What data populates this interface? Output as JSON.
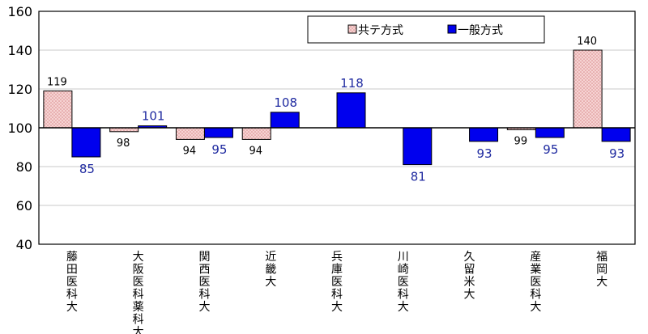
{
  "chart_data": {
    "type": "bar",
    "categories": [
      "藤田医科大",
      "大阪医科薬科大",
      "関西医科大",
      "近畿大",
      "兵庫医科大",
      "川崎医科大",
      "久留米大",
      "産業医科大",
      "福岡大"
    ],
    "series": [
      {
        "name": "共テ方式",
        "values": [
          119,
          98,
          94,
          94,
          null,
          null,
          null,
          99,
          140
        ],
        "color": "#f4c8c8",
        "pattern": "dotted-pink"
      },
      {
        "name": "一般方式",
        "values": [
          85,
          101,
          95,
          108,
          118,
          81,
          93,
          95,
          93
        ],
        "color": "#0000ee"
      }
    ],
    "baseline": 100,
    "ylim": [
      40,
      160
    ],
    "yticks": [
      "40",
      "60",
      "80",
      "100",
      "120",
      "140",
      "160"
    ],
    "grid": true,
    "legend_position": "top-right",
    "title": "",
    "xlabel": "",
    "ylabel": ""
  }
}
